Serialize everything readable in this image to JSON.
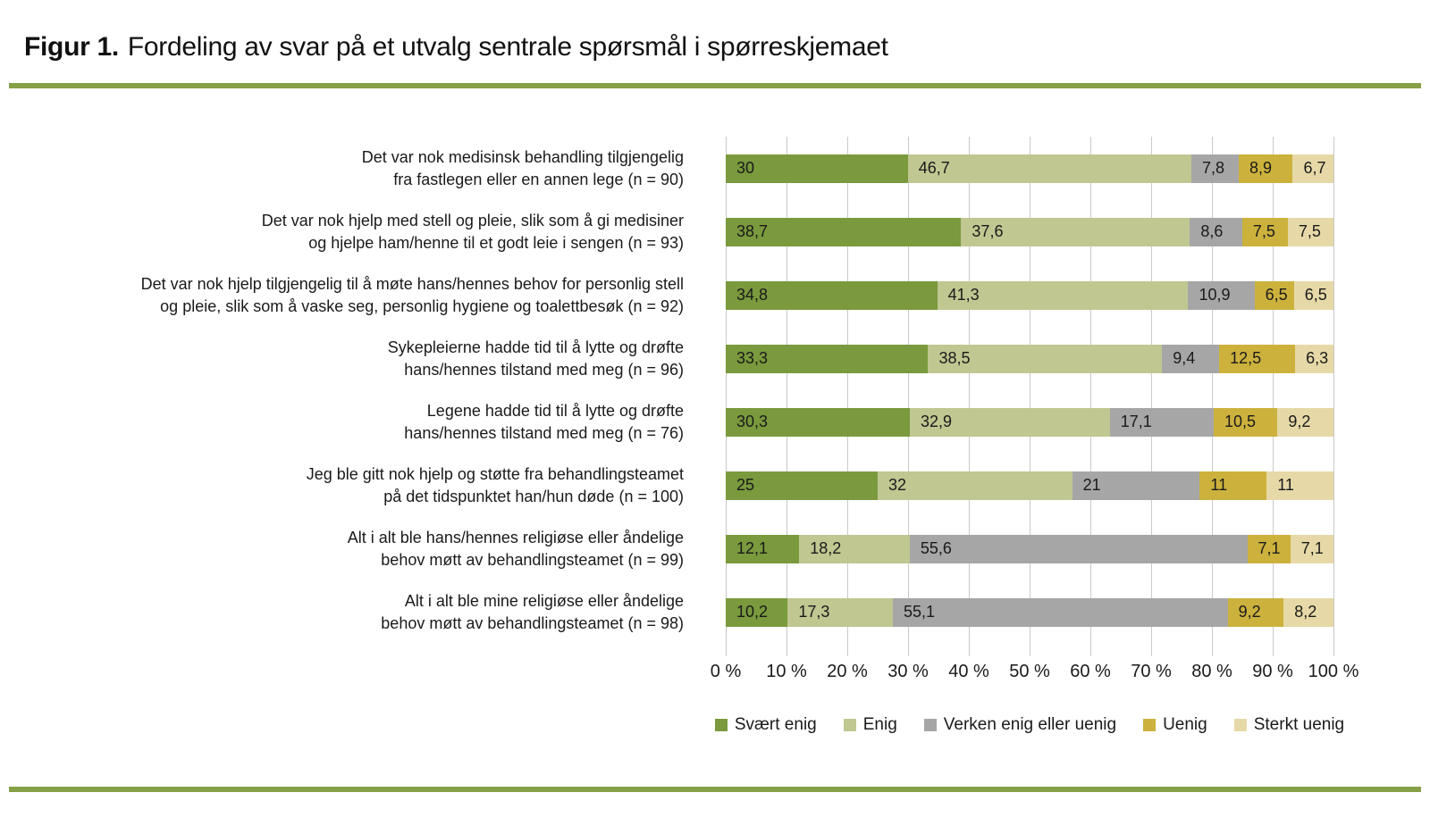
{
  "title": {
    "prefix": "Figur 1.",
    "text": "Fordeling av svar på et utvalg sentrale spørsmål i spørreskjemaet"
  },
  "accent_rule_color": "#86A046",
  "chart_data": {
    "type": "bar",
    "orientation": "horizontal-stacked",
    "unit": "percent",
    "xlim": [
      0,
      100
    ],
    "grid": "vertical",
    "gridline_color": "#c9c9c9",
    "legend_position": "bottom",
    "x_ticks": [
      "0 %",
      "10 %",
      "20 %",
      "30 %",
      "40 %",
      "50 %",
      "60 %",
      "70 %",
      "80 %",
      "90 %",
      "100 %"
    ],
    "series": [
      {
        "name": "Svært enig",
        "color": "#7A9A3D"
      },
      {
        "name": "Enig",
        "color": "#C0C791"
      },
      {
        "name": "Verken enig eller uenig",
        "color": "#A6A6A6"
      },
      {
        "name": "Uenig",
        "color": "#CCB23D"
      },
      {
        "name": "Sterkt uenig",
        "color": "#E6D9A7"
      }
    ],
    "rows": [
      {
        "label_lines": [
          "Det var nok medisinsk behandling tilgjengelig",
          "fra fastlegen eller en annen lege (n = 90)"
        ],
        "n": 90,
        "values": [
          30,
          46.7,
          7.8,
          8.9,
          6.7
        ],
        "value_labels": [
          "30",
          "46,7",
          "7,8",
          "8,9",
          "6,7"
        ]
      },
      {
        "label_lines": [
          "Det var nok hjelp med stell og pleie, slik som å gi medisiner",
          "og hjelpe ham/henne til et godt leie i sengen (n = 93)"
        ],
        "n": 93,
        "values": [
          38.7,
          37.6,
          8.6,
          7.5,
          7.5
        ],
        "value_labels": [
          "38,7",
          "37,6",
          "8,6",
          "7,5",
          "7,5"
        ]
      },
      {
        "label_lines": [
          "Det var nok hjelp tilgjengelig til å møte hans/hennes behov for personlig stell",
          "og pleie, slik som å vaske seg, personlig hygiene og toalettbesøk (n = 92)"
        ],
        "n": 92,
        "values": [
          34.8,
          41.3,
          10.9,
          6.5,
          6.5
        ],
        "value_labels": [
          "34,8",
          "41,3",
          "10,9",
          "6,5",
          "6,5"
        ]
      },
      {
        "label_lines": [
          "Sykepleierne hadde tid til å lytte og drøfte",
          "hans/hennes tilstand med meg (n = 96)"
        ],
        "n": 96,
        "values": [
          33.3,
          38.5,
          9.4,
          12.5,
          6.3
        ],
        "value_labels": [
          "33,3",
          "38,5",
          "9,4",
          "12,5",
          "6,3"
        ]
      },
      {
        "label_lines": [
          "Legene hadde tid til å lytte og drøfte",
          "hans/hennes tilstand med meg (n = 76)"
        ],
        "n": 76,
        "values": [
          30.3,
          32.9,
          17.1,
          10.5,
          9.2
        ],
        "value_labels": [
          "30,3",
          "32,9",
          "17,1",
          "10,5",
          "9,2"
        ]
      },
      {
        "label_lines": [
          "Jeg ble gitt nok hjelp og støtte fra behandlingsteamet",
          "på det tidspunktet han/hun døde (n = 100)"
        ],
        "n": 100,
        "values": [
          25,
          32,
          21,
          11,
          11
        ],
        "value_labels": [
          "25",
          "32",
          "21",
          "11",
          "11"
        ]
      },
      {
        "label_lines": [
          "Alt i alt ble hans/hennes religiøse eller åndelige",
          "behov møtt av behandlingsteamet (n = 99)"
        ],
        "n": 99,
        "values": [
          12.1,
          18.2,
          55.6,
          7.1,
          7.1
        ],
        "value_labels": [
          "12,1",
          "18,2",
          "55,6",
          "7,1",
          "7,1"
        ]
      },
      {
        "label_lines": [
          "Alt i alt ble mine religiøse eller åndelige",
          "behov møtt av behandlingsteamet (n = 98)"
        ],
        "n": 98,
        "values": [
          10.2,
          17.3,
          55.1,
          9.2,
          8.2
        ],
        "value_labels": [
          "10,2",
          "17,3",
          "55,1",
          "9,2",
          "8,2"
        ]
      }
    ]
  }
}
